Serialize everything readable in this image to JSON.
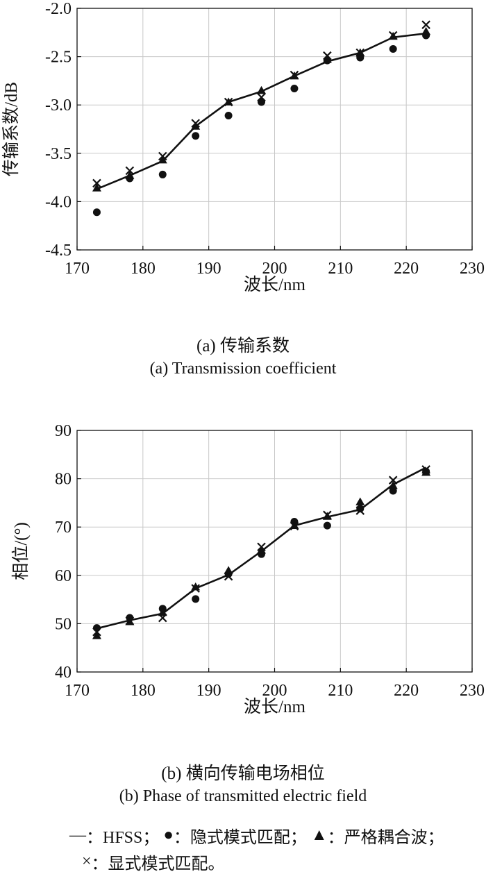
{
  "chart_data": [
    {
      "type": "line",
      "id": "a",
      "ylabel": "传输系数/dB",
      "xlabel": "波长/nm",
      "xlim": [
        170,
        230
      ],
      "ylim": [
        -4.5,
        -2.0
      ],
      "xticks": [
        170,
        180,
        190,
        200,
        210,
        220,
        230
      ],
      "yticks": [
        -4.5,
        -4.0,
        -3.5,
        -3.0,
        -2.5,
        -2.0
      ],
      "ytick_labels": [
        "-4.5",
        "-4.0",
        "-3.5",
        "-3.0",
        "-2.5",
        "-2.0"
      ],
      "grid": true,
      "x": [
        173,
        178,
        183,
        188,
        193,
        198,
        203,
        208,
        213,
        218,
        223
      ],
      "series": [
        {
          "marker": "line",
          "values": [
            -3.87,
            -3.73,
            -3.58,
            -3.22,
            -2.97,
            -2.86,
            -2.7,
            -2.55,
            -2.46,
            -2.3,
            -2.26
          ]
        },
        {
          "marker": "circle",
          "values": [
            -4.11,
            -3.76,
            -3.72,
            -3.32,
            -3.11,
            -2.97,
            -2.83,
            -2.54,
            -2.51,
            -2.42,
            -2.28
          ]
        },
        {
          "marker": "triangle",
          "values": [
            -3.86,
            -3.73,
            -3.57,
            -3.22,
            -2.97,
            -2.85,
            -2.7,
            -2.53,
            -2.46,
            -2.29,
            -2.24
          ]
        },
        {
          "marker": "cross",
          "values": [
            -3.81,
            -3.68,
            -3.53,
            -3.19,
            -2.97,
            -2.92,
            -2.69,
            -2.49,
            -2.46,
            -2.28,
            -2.17
          ]
        }
      ],
      "caption_cn": "(a) 传输系数",
      "caption_en": "(a) Transmission coefficient"
    },
    {
      "type": "line",
      "id": "b",
      "ylabel": "相位/(°)",
      "xlabel": "波长/nm",
      "xlim": [
        170,
        230
      ],
      "ylim": [
        40,
        90
      ],
      "xticks": [
        170,
        180,
        190,
        200,
        210,
        220,
        230
      ],
      "yticks": [
        40,
        50,
        60,
        70,
        80,
        90
      ],
      "ytick_labels": [
        "40",
        "50",
        "60",
        "70",
        "80",
        "90"
      ],
      "grid": true,
      "x": [
        173,
        178,
        183,
        188,
        193,
        198,
        203,
        208,
        213,
        218,
        223
      ],
      "series": [
        {
          "marker": "line",
          "values": [
            49.0,
            50.7,
            52.1,
            57.3,
            60.1,
            65.0,
            70.3,
            72.1,
            73.6,
            78.8,
            82.3
          ]
        },
        {
          "marker": "circle",
          "values": [
            49.1,
            51.2,
            53.1,
            55.1,
            60.3,
            64.4,
            71.1,
            70.3,
            73.8,
            77.5,
            81.5
          ]
        },
        {
          "marker": "triangle",
          "values": [
            47.5,
            50.4,
            52.3,
            57.6,
            61.0,
            65.2,
            70.3,
            72.2,
            75.2,
            78.6,
            81.3
          ]
        },
        {
          "marker": "cross",
          "values": [
            48.3,
            50.6,
            51.2,
            57.3,
            59.8,
            65.9,
            70.2,
            72.5,
            73.4,
            79.7,
            81.9
          ]
        }
      ],
      "caption_cn": "(b) 横向传输电场相位",
      "caption_en": "(b) Phase of transmitted electric field"
    }
  ],
  "legend": {
    "line_label": "：HFSS；",
    "circle_label": "：隐式模式匹配；",
    "triangle_label": "：严格耦合波；",
    "cross_label": "：显式模式匹配。"
  }
}
